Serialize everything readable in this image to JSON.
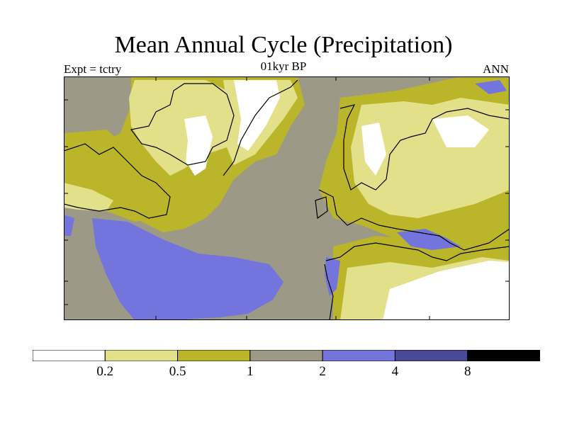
{
  "header": {
    "title": "Mean Annual Cycle (Precipitation)",
    "subtitle": "01kyr BP",
    "left": "Expt = tctry",
    "right": "ANN"
  },
  "legend": {
    "colors": [
      "#ffffff",
      "#e3e08a",
      "#bbb52a",
      "#9c9a87",
      "#7474dd",
      "#4a4898",
      "#000000"
    ],
    "ticks": [
      "0.2",
      "0.5",
      "1",
      "2",
      "4",
      "8"
    ]
  },
  "map": {
    "sea_value_category": "1-2",
    "dominant_ocean_color": "#9c9a87"
  }
}
